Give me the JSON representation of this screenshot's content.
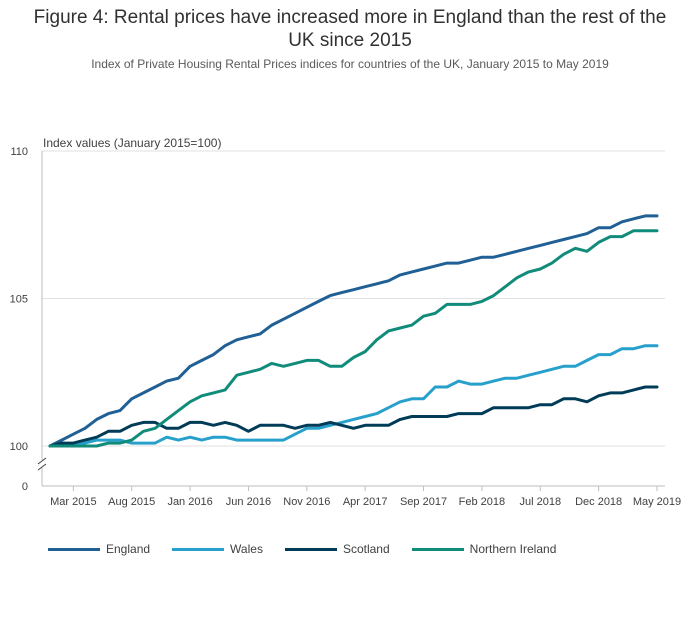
{
  "header": {
    "title": "Figure 4: Rental prices have increased more in England than the rest of the UK since 2015",
    "subtitle": "Index of Private Housing Rental Prices indices for countries of the UK, January 2015 to May 2019"
  },
  "chart_data": {
    "type": "line",
    "title": "Figure 4: Rental prices have increased more in England than the rest of the UK since 2015",
    "subtitle": "Index of Private Housing Rental Prices indices for countries of the UK, January 2015 to May 2019",
    "xlabel": "",
    "ylabel": "Index values (January 2015=100)",
    "ylim": [
      100,
      110
    ],
    "y_ticks": [
      100,
      105,
      110
    ],
    "y_axis_break": true,
    "y_axis_zero_label": "0",
    "grid": true,
    "legend_position": "bottom",
    "x_tick_labels": [
      "Mar 2015",
      "Aug 2015",
      "Jan 2016",
      "Jun 2016",
      "Nov 2016",
      "Apr 2017",
      "Sep 2017",
      "Feb 2018",
      "Jul 2018",
      "Dec 2018",
      "May 2019"
    ],
    "x_tick_index": [
      2,
      7,
      12,
      17,
      22,
      27,
      32,
      37,
      42,
      47,
      52
    ],
    "x": [
      "Jan 2015",
      "Feb 2015",
      "Mar 2015",
      "Apr 2015",
      "May 2015",
      "Jun 2015",
      "Jul 2015",
      "Aug 2015",
      "Sep 2015",
      "Oct 2015",
      "Nov 2015",
      "Dec 2015",
      "Jan 2016",
      "Feb 2016",
      "Mar 2016",
      "Apr 2016",
      "May 2016",
      "Jun 2016",
      "Jul 2016",
      "Aug 2016",
      "Sep 2016",
      "Oct 2016",
      "Nov 2016",
      "Dec 2016",
      "Jan 2017",
      "Feb 2017",
      "Mar 2017",
      "Apr 2017",
      "May 2017",
      "Jun 2017",
      "Jul 2017",
      "Aug 2017",
      "Sep 2017",
      "Oct 2017",
      "Nov 2017",
      "Dec 2017",
      "Jan 2018",
      "Feb 2018",
      "Mar 2018",
      "Apr 2018",
      "May 2018",
      "Jun 2018",
      "Jul 2018",
      "Aug 2018",
      "Sep 2018",
      "Oct 2018",
      "Nov 2018",
      "Dec 2018",
      "Jan 2019",
      "Feb 2019",
      "Mar 2019",
      "Apr 2019",
      "May 2019"
    ],
    "series": [
      {
        "name": "England",
        "color": "#206095",
        "values": [
          100.0,
          100.2,
          100.4,
          100.6,
          100.9,
          101.1,
          101.2,
          101.6,
          101.8,
          102.0,
          102.2,
          102.3,
          102.7,
          102.9,
          103.1,
          103.4,
          103.6,
          103.7,
          103.8,
          104.1,
          104.3,
          104.5,
          104.7,
          104.9,
          105.1,
          105.2,
          105.3,
          105.4,
          105.5,
          105.6,
          105.8,
          105.9,
          106.0,
          106.1,
          106.2,
          106.2,
          106.3,
          106.4,
          106.4,
          106.5,
          106.6,
          106.7,
          106.8,
          106.9,
          107.0,
          107.1,
          107.2,
          107.4,
          107.4,
          107.6,
          107.7,
          107.8,
          107.8
        ]
      },
      {
        "name": "Wales",
        "color": "#27a0cc",
        "values": [
          100.0,
          100.0,
          100.0,
          100.1,
          100.2,
          100.2,
          100.2,
          100.1,
          100.1,
          100.1,
          100.3,
          100.2,
          100.3,
          100.2,
          100.3,
          100.3,
          100.2,
          100.2,
          100.2,
          100.2,
          100.2,
          100.4,
          100.6,
          100.6,
          100.7,
          100.8,
          100.9,
          101.0,
          101.1,
          101.3,
          101.5,
          101.6,
          101.6,
          102.0,
          102.0,
          102.2,
          102.1,
          102.1,
          102.2,
          102.3,
          102.3,
          102.4,
          102.5,
          102.6,
          102.7,
          102.7,
          102.9,
          103.1,
          103.1,
          103.3,
          103.3,
          103.4,
          103.4
        ]
      },
      {
        "name": "Scotland",
        "color": "#003c57",
        "values": [
          100.0,
          100.1,
          100.1,
          100.2,
          100.3,
          100.5,
          100.5,
          100.7,
          100.8,
          100.8,
          100.6,
          100.6,
          100.8,
          100.8,
          100.7,
          100.8,
          100.7,
          100.5,
          100.7,
          100.7,
          100.7,
          100.6,
          100.7,
          100.7,
          100.8,
          100.7,
          100.6,
          100.7,
          100.7,
          100.7,
          100.9,
          101.0,
          101.0,
          101.0,
          101.0,
          101.1,
          101.1,
          101.1,
          101.3,
          101.3,
          101.3,
          101.3,
          101.4,
          101.4,
          101.6,
          101.6,
          101.5,
          101.7,
          101.8,
          101.8,
          101.9,
          102.0,
          102.0
        ]
      },
      {
        "name": "Northern Ireland",
        "color": "#118c7b",
        "values": [
          100.0,
          100.0,
          100.0,
          100.0,
          100.0,
          100.1,
          100.1,
          100.2,
          100.5,
          100.6,
          100.9,
          101.2,
          101.5,
          101.7,
          101.8,
          101.9,
          102.4,
          102.5,
          102.6,
          102.8,
          102.7,
          102.8,
          102.9,
          102.9,
          102.7,
          102.7,
          103.0,
          103.2,
          103.6,
          103.9,
          104.0,
          104.1,
          104.4,
          104.5,
          104.8,
          104.8,
          104.8,
          104.9,
          105.1,
          105.4,
          105.7,
          105.9,
          106.0,
          106.2,
          106.5,
          106.7,
          106.6,
          106.9,
          107.1,
          107.1,
          107.3,
          107.3,
          107.3
        ]
      }
    ]
  }
}
